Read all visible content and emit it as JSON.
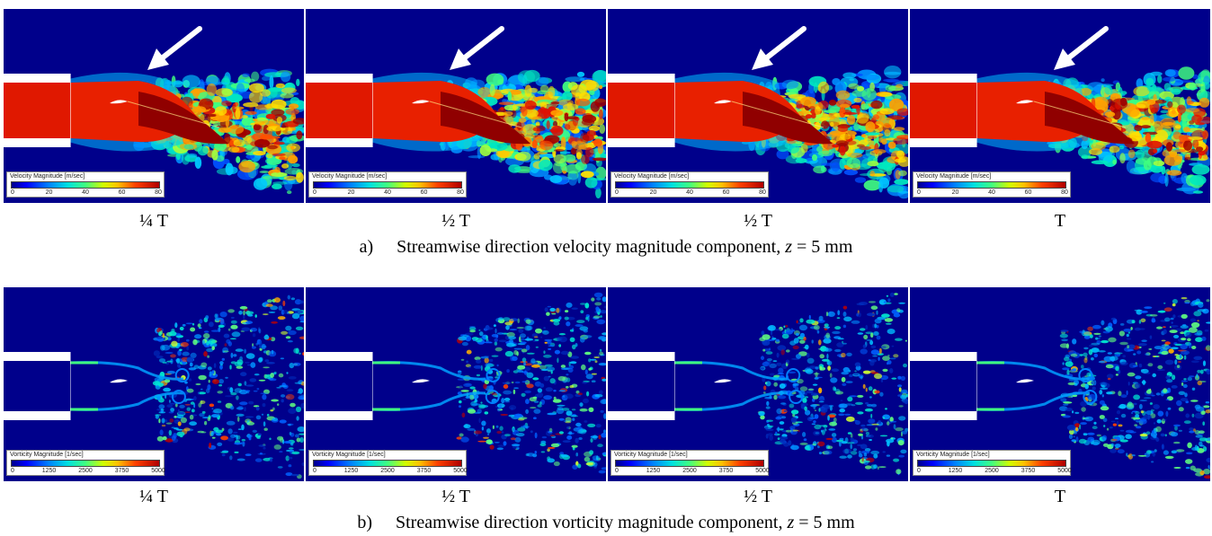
{
  "rows": [
    {
      "id": "velocity",
      "caption_label": "a)",
      "caption_text": "Streamwise direction velocity magnitude component,",
      "caption_var": "z",
      "caption_suffix": " = 5 mm",
      "legend_title": "Velocity Magnitude [m/sec]",
      "legend_ticks": [
        "0",
        "20",
        "40",
        "60",
        "80"
      ],
      "panel_labels": [
        "¼ T",
        "½ T",
        "½ T",
        "T"
      ],
      "arrow_color": "#ffffff",
      "background_color": "#00008b"
    },
    {
      "id": "vorticity",
      "caption_label": "b)",
      "caption_text": "Streamwise direction vorticity magnitude component,",
      "caption_var": "z",
      "caption_suffix": " = 5 mm",
      "legend_title": "Vorticity Magnitude [1/sec]",
      "legend_ticks": [
        "0",
        "1250",
        "2500",
        "3750",
        "5000"
      ],
      "panel_labels": [
        "¼ T",
        "½ T",
        "½ T",
        "T"
      ],
      "background_color": "#00008b"
    }
  ]
}
